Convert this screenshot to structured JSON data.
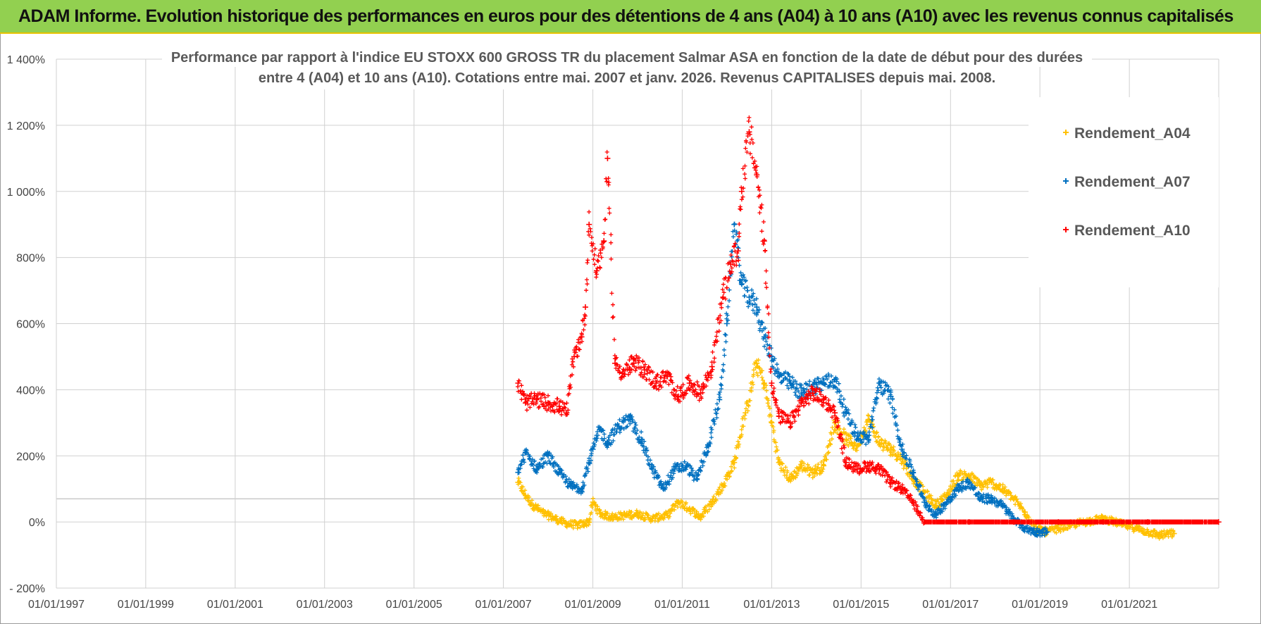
{
  "header": {
    "title": "ADAM Informe. Evolution historique des performances en euros pour des détentions de 4 ans (A04) à 10 ans (A10) avec les revenus connus capitalisés"
  },
  "chart_data": {
    "type": "scatter",
    "title_line1": "Performance par rapport à l'indice EU STOXX 600 GROSS TR  du placement Salmar ASA en fonction de la date de début pour des durées",
    "title_line2": "entre 4 (A04) et 10 ans (A10). Cotations entre mai. 2007 et janv. 2026. Revenus CAPITALISES depuis mai. 2008.",
    "xlabel": "",
    "ylabel": "",
    "x_ticks": [
      "01/01/1997",
      "01/01/1999",
      "01/01/2001",
      "01/01/2003",
      "01/01/2005",
      "01/01/2007",
      "01/01/2009",
      "01/01/2011",
      "01/01/2013",
      "01/01/2015",
      "01/01/2017",
      "01/01/2019",
      "01/01/2021"
    ],
    "xlim": [
      "1997-01-01",
      "2023-01-01"
    ],
    "y_ticks": [
      "- 200%",
      "0%",
      "200%",
      "400%",
      "600%",
      "800%",
      "1 000%",
      "1 200%",
      "1 400%"
    ],
    "ylim": [
      -200,
      1400
    ],
    "grid": true,
    "legend_position": "top-right",
    "series": [
      {
        "name": "Rendement_A04",
        "color": "#ffc000",
        "points": [
          [
            "2007-05-01",
            120
          ],
          [
            "2007-07-01",
            80
          ],
          [
            "2007-09-01",
            50
          ],
          [
            "2007-12-01",
            25
          ],
          [
            "2008-03-01",
            10
          ],
          [
            "2008-06-01",
            -5
          ],
          [
            "2008-09-01",
            -10
          ],
          [
            "2008-12-01",
            0
          ],
          [
            "2009-01-01",
            60
          ],
          [
            "2009-03-01",
            25
          ],
          [
            "2009-06-01",
            15
          ],
          [
            "2009-10-01",
            20
          ],
          [
            "2010-01-01",
            25
          ],
          [
            "2010-05-01",
            10
          ],
          [
            "2010-09-01",
            20
          ],
          [
            "2010-12-01",
            60
          ],
          [
            "2011-03-01",
            40
          ],
          [
            "2011-06-01",
            15
          ],
          [
            "2011-09-01",
            60
          ],
          [
            "2011-12-01",
            110
          ],
          [
            "2012-03-01",
            180
          ],
          [
            "2012-06-01",
            330
          ],
          [
            "2012-09-01",
            480
          ],
          [
            "2012-11-01",
            420
          ],
          [
            "2013-01-01",
            300
          ],
          [
            "2013-03-01",
            180
          ],
          [
            "2013-06-01",
            130
          ],
          [
            "2013-09-01",
            170
          ],
          [
            "2013-12-01",
            150
          ],
          [
            "2014-03-01",
            170
          ],
          [
            "2014-06-01",
            300
          ],
          [
            "2014-09-01",
            250
          ],
          [
            "2014-12-01",
            230
          ],
          [
            "2015-03-01",
            310
          ],
          [
            "2015-06-01",
            240
          ],
          [
            "2015-09-01",
            220
          ],
          [
            "2015-12-01",
            190
          ],
          [
            "2016-03-01",
            130
          ],
          [
            "2016-06-01",
            90
          ],
          [
            "2016-09-01",
            50
          ],
          [
            "2016-12-01",
            80
          ],
          [
            "2017-03-01",
            140
          ],
          [
            "2017-06-01",
            140
          ],
          [
            "2017-09-01",
            110
          ],
          [
            "2017-12-01",
            120
          ],
          [
            "2018-03-01",
            100
          ],
          [
            "2018-06-01",
            70
          ],
          [
            "2018-09-01",
            30
          ],
          [
            "2018-12-01",
            -20
          ],
          [
            "2019-03-01",
            -30
          ],
          [
            "2019-06-01",
            -20
          ],
          [
            "2019-09-01",
            -10
          ],
          [
            "2020-01-01",
            0
          ],
          [
            "2020-06-01",
            10
          ],
          [
            "2020-12-01",
            -10
          ],
          [
            "2021-03-01",
            -20
          ],
          [
            "2021-06-01",
            -30
          ],
          [
            "2021-09-01",
            -40
          ],
          [
            "2022-01-01",
            -35
          ]
        ]
      },
      {
        "name": "Rendement_A07",
        "color": "#0070c0",
        "points": [
          [
            "2007-05-01",
            150
          ],
          [
            "2007-07-01",
            210
          ],
          [
            "2007-10-01",
            160
          ],
          [
            "2008-01-01",
            200
          ],
          [
            "2008-04-01",
            150
          ],
          [
            "2008-07-01",
            110
          ],
          [
            "2008-10-01",
            100
          ],
          [
            "2008-12-01",
            180
          ],
          [
            "2009-01-01",
            220
          ],
          [
            "2009-03-01",
            280
          ],
          [
            "2009-05-01",
            240
          ],
          [
            "2009-08-01",
            290
          ],
          [
            "2009-11-01",
            310
          ],
          [
            "2010-02-01",
            250
          ],
          [
            "2010-05-01",
            160
          ],
          [
            "2010-08-01",
            100
          ],
          [
            "2010-11-01",
            160
          ],
          [
            "2011-02-01",
            170
          ],
          [
            "2011-05-01",
            130
          ],
          [
            "2011-08-01",
            230
          ],
          [
            "2011-11-01",
            370
          ],
          [
            "2012-01-01",
            600
          ],
          [
            "2012-03-01",
            900
          ],
          [
            "2012-05-01",
            720
          ],
          [
            "2012-07-01",
            680
          ],
          [
            "2012-09-01",
            650
          ],
          [
            "2012-11-01",
            560
          ],
          [
            "2013-01-01",
            500
          ],
          [
            "2013-03-01",
            440
          ],
          [
            "2013-06-01",
            420
          ],
          [
            "2013-09-01",
            390
          ],
          [
            "2013-12-01",
            410
          ],
          [
            "2014-03-01",
            420
          ],
          [
            "2014-06-01",
            430
          ],
          [
            "2014-09-01",
            330
          ],
          [
            "2014-12-01",
            260
          ],
          [
            "2015-03-01",
            250
          ],
          [
            "2015-06-01",
            420
          ],
          [
            "2015-09-01",
            380
          ],
          [
            "2015-12-01",
            220
          ],
          [
            "2016-03-01",
            150
          ],
          [
            "2016-06-01",
            60
          ],
          [
            "2016-09-01",
            20
          ],
          [
            "2016-12-01",
            60
          ],
          [
            "2017-03-01",
            100
          ],
          [
            "2017-06-01",
            120
          ],
          [
            "2017-09-01",
            70
          ],
          [
            "2017-12-01",
            70
          ],
          [
            "2018-03-01",
            50
          ],
          [
            "2018-06-01",
            10
          ],
          [
            "2018-09-01",
            -20
          ],
          [
            "2018-12-01",
            -30
          ],
          [
            "2019-03-01",
            -30
          ]
        ]
      },
      {
        "name": "Rendement_A10",
        "color": "#ff0000",
        "points": [
          [
            "2007-05-01",
            420
          ],
          [
            "2007-07-01",
            360
          ],
          [
            "2007-10-01",
            370
          ],
          [
            "2008-01-01",
            360
          ],
          [
            "2008-04-01",
            350
          ],
          [
            "2008-06-01",
            330
          ],
          [
            "2008-08-01",
            500
          ],
          [
            "2008-10-01",
            560
          ],
          [
            "2008-11-01",
            650
          ],
          [
            "2008-12-01",
            900
          ],
          [
            "2009-02-01",
            760
          ],
          [
            "2009-04-01",
            850
          ],
          [
            "2009-05-01",
            1100
          ],
          [
            "2009-07-01",
            480
          ],
          [
            "2009-09-01",
            450
          ],
          [
            "2009-12-01",
            480
          ],
          [
            "2010-03-01",
            460
          ],
          [
            "2010-06-01",
            420
          ],
          [
            "2010-09-01",
            440
          ],
          [
            "2010-12-01",
            380
          ],
          [
            "2011-03-01",
            420
          ],
          [
            "2011-06-01",
            390
          ],
          [
            "2011-09-01",
            470
          ],
          [
            "2011-12-01",
            680
          ],
          [
            "2012-02-01",
            780
          ],
          [
            "2012-04-01",
            820
          ],
          [
            "2012-05-01",
            1000
          ],
          [
            "2012-07-01",
            1180
          ],
          [
            "2012-09-01",
            1050
          ],
          [
            "2012-11-01",
            850
          ],
          [
            "2013-01-01",
            420
          ],
          [
            "2013-03-01",
            320
          ],
          [
            "2013-06-01",
            300
          ],
          [
            "2013-09-01",
            360
          ],
          [
            "2013-12-01",
            390
          ],
          [
            "2014-03-01",
            370
          ],
          [
            "2014-06-01",
            330
          ],
          [
            "2014-09-01",
            180
          ],
          [
            "2014-12-01",
            160
          ],
          [
            "2015-03-01",
            170
          ],
          [
            "2015-06-01",
            160
          ],
          [
            "2015-09-01",
            120
          ],
          [
            "2015-12-01",
            100
          ],
          [
            "2016-03-01",
            60
          ],
          [
            "2016-06-01",
            0
          ],
          [
            "2017-06-01",
            0
          ],
          [
            "2018-06-01",
            0
          ],
          [
            "2019-06-01",
            0
          ],
          [
            "2020-06-01",
            0
          ],
          [
            "2021-06-01",
            0
          ],
          [
            "2022-12-31",
            0
          ]
        ]
      }
    ]
  }
}
